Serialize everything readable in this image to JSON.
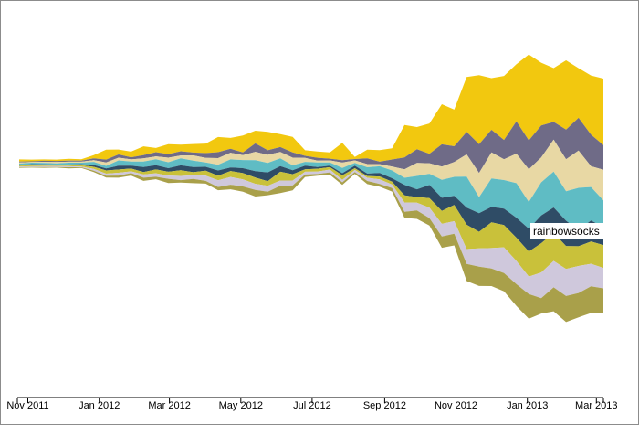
{
  "chart_data": {
    "type": "area",
    "subtype": "streamgraph",
    "x_axis": {
      "ticks": [
        "Nov 2011",
        "Jan 2012",
        "Mar 2012",
        "May 2012",
        "Jul 2012",
        "Sep 2012",
        "Nov 2012",
        "Jan 2013",
        "Mar 2013"
      ],
      "range": [
        "2011-10-23",
        "2013-03-07"
      ]
    },
    "grid": false,
    "legend": "none",
    "hover_label": "rainbowsocks",
    "palette": [
      "#f2c80f",
      "#6f6b87",
      "#e8d8a4",
      "#5fbcc4",
      "#2f4c66",
      "#c9c13a",
      "#cfc8dc",
      "#a9a04a"
    ],
    "stream_points": 48,
    "series": [
      {
        "values": [
          0.6,
          0.5,
          0.4,
          0.4,
          0.5,
          0.4,
          0.9,
          2.8,
          1.4,
          1.6,
          2.5,
          1.2,
          2.8,
          1.9,
          2.4,
          2.7,
          4.3,
          3.1,
          4.8,
          3.6,
          5.2,
          3.7,
          4.4,
          1.6,
          1.8,
          1.8,
          4.9,
          0.6,
          2.5,
          3.3,
          3.2,
          9.2,
          6.3,
          8.6,
          11.4,
          10.4,
          15.6,
          19.6,
          14.7,
          18.2,
          16.2,
          24.4,
          17.8,
          15.3,
          19.7,
          14.1,
          16.8,
          18.9
        ]
      },
      {
        "values": [
          0.3,
          0.2,
          0.3,
          0.3,
          0.3,
          0.3,
          0.5,
          0.8,
          0.9,
          0.6,
          0.9,
          1.2,
          1.0,
          1.2,
          0.8,
          1.4,
          1.7,
          1.1,
          0.8,
          2.4,
          1.3,
          1.4,
          1.5,
          0.6,
          0.8,
          0.5,
          0.7,
          0.4,
          1.6,
          0.7,
          2.0,
          3.4,
          3.9,
          2.7,
          6.3,
          4.5,
          6.4,
          8.2,
          6.4,
          5.5,
          9.2,
          8.2,
          9.1,
          5.0,
          8.4,
          9.3,
          9.0,
          7.0
        ]
      },
      {
        "values": [
          0.3,
          0.2,
          0.3,
          0.4,
          0.3,
          0.3,
          0.5,
          1.0,
          0.8,
          0.6,
          0.9,
          0.8,
          1.3,
          0.8,
          1.5,
          1.3,
          1.9,
          1.9,
          1.4,
          2.4,
          2.3,
          1.8,
          2.2,
          1.1,
          0.5,
          0.6,
          1.5,
          0.7,
          0.9,
          0.6,
          1.1,
          2.4,
          3.7,
          3.0,
          3.8,
          4.2,
          6.3,
          6.9,
          7.4,
          5.9,
          8.4,
          9.3,
          7.1,
          9.1,
          9.1,
          10.6,
          5.9,
          8.7
        ]
      },
      {
        "values": [
          0.4,
          0.4,
          0.4,
          0.3,
          0.5,
          0.4,
          0.9,
          0.7,
          1.5,
          1.2,
          1.6,
          1.7,
          1.7,
          2.0,
          1.8,
          1.2,
          1.6,
          2.3,
          2.3,
          3.1,
          2.7,
          2.2,
          1.4,
          1.1,
          1.3,
          0.9,
          1.5,
          0.8,
          1.8,
          1.9,
          2.2,
          2.0,
          3.8,
          3.2,
          5.1,
          5.4,
          8.8,
          4.5,
          8.1,
          8.1,
          9.8,
          7.6,
          9.4,
          10.2,
          8.4,
          12.0,
          9.5,
          7.6
        ]
      },
      {
        "values": [
          0.2,
          0.3,
          0.2,
          0.2,
          0.3,
          0.3,
          0.5,
          0.6,
          1.1,
          0.8,
          1.4,
          1.2,
          1.0,
          1.4,
          1.5,
          1.1,
          1.5,
          1.0,
          1.4,
          1.8,
          2.5,
          1.6,
          1.1,
          1.0,
          0.5,
          0.4,
          0.6,
          0.7,
          0.7,
          1.0,
          1.0,
          3.0,
          2.2,
          3.7,
          3.7,
          2.6,
          4.9,
          5.3,
          4.4,
          4.7,
          5.7,
          6.5,
          7.9,
          7.2,
          7.2,
          4.6,
          6.0,
          5.1
        ]
      },
      {
        "values": [
          0.2,
          0.3,
          0.3,
          0.2,
          0.2,
          0.4,
          0.6,
          0.9,
          0.9,
          0.8,
          0.7,
          1.1,
          1.1,
          1.6,
          0.9,
          1.4,
          1.3,
          1.7,
          1.8,
          1.8,
          1.3,
          2.5,
          1.8,
          0.7,
          0.8,
          0.7,
          1.3,
          0.5,
          0.5,
          0.8,
          0.8,
          2.0,
          1.6,
          2.7,
          3.7,
          4.6,
          6.9,
          4.7,
          7.3,
          6.3,
          6.6,
          7.1,
          8.3,
          8.0,
          6.5,
          5.6,
          6.3,
          6.5
        ]
      },
      {
        "values": [
          0.2,
          0.2,
          0.3,
          0.3,
          0.3,
          0.2,
          0.5,
          0.6,
          0.8,
          0.5,
          0.9,
          1.0,
          0.9,
          1.2,
          1.0,
          1.5,
          1.9,
          2.2,
          2.0,
          1.7,
          1.7,
          1.5,
          1.4,
          0.8,
          0.7,
          0.8,
          0.7,
          0.6,
          0.9,
          1.3,
          1.0,
          2.7,
          2.2,
          3.0,
          3.6,
          3.6,
          4.2,
          5.2,
          5.8,
          7.3,
          6.6,
          5.0,
          7.3,
          7.5,
          7.7,
          7.7,
          6.4,
          5.8
        ]
      },
      {
        "values": [
          0.2,
          0.2,
          0.2,
          0.2,
          0.3,
          0.2,
          0.4,
          0.5,
          0.6,
          0.7,
          0.9,
          0.7,
          1.2,
          0.7,
          1.2,
          0.8,
          0.9,
          1.3,
          1.5,
          1.9,
          1.0,
          2.1,
          1.4,
          0.7,
          0.5,
          0.7,
          0.7,
          0.5,
          0.9,
          0.8,
          1.0,
          1.7,
          2.4,
          2.1,
          3.2,
          3.3,
          4.9,
          5.5,
          5.0,
          5.2,
          6.2,
          7.0,
          4.4,
          6.8,
          7.4,
          6.9,
          7.6,
          7.0
        ]
      }
    ]
  }
}
